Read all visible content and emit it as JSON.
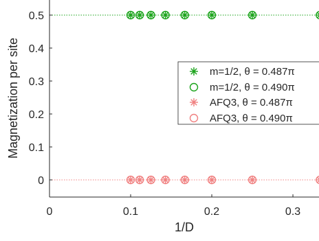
{
  "chart_data": {
    "type": "scatter",
    "xlabel": "1/D",
    "ylabel": "Magnetization per site",
    "xlim": [
      0,
      0.333
    ],
    "ylim": [
      -0.05,
      0.55
    ],
    "x_ticks": [
      "0",
      "0.1",
      "0.2",
      "0.3"
    ],
    "y_ticks": [
      "0",
      "0.1",
      "0.2",
      "0.3",
      "0.4",
      "0.5"
    ],
    "x_tick_values": [
      0,
      0.1,
      0.2,
      0.3
    ],
    "y_tick_values": [
      0,
      0.1,
      0.2,
      0.3,
      0.4,
      0.5
    ],
    "reference_lines": [
      {
        "y": 0.5,
        "color": "#1aa31a",
        "style": "dotted"
      },
      {
        "y": 0.0,
        "color": "#f08080",
        "style": "dotted"
      }
    ],
    "legend_position": "center-right",
    "series": [
      {
        "name": "m=1/2, θ = 0.487π",
        "marker": "asterisk",
        "color": "#1aa31a",
        "x": [
          0.1,
          0.1111,
          0.125,
          0.1429,
          0.1667,
          0.2,
          0.25,
          0.3333
        ],
        "y": [
          0.5,
          0.5,
          0.5,
          0.5,
          0.5,
          0.5,
          0.5,
          0.5
        ]
      },
      {
        "name": "m=1/2, θ = 0.490π",
        "marker": "circle",
        "color": "#1aa31a",
        "x": [
          0.1,
          0.1111,
          0.125,
          0.1429,
          0.1667,
          0.2,
          0.25,
          0.3333
        ],
        "y": [
          0.5,
          0.5,
          0.5,
          0.5,
          0.5,
          0.5,
          0.5,
          0.5
        ]
      },
      {
        "name": "AFQ3, θ = 0.487π",
        "marker": "asterisk",
        "color": "#f08080",
        "x": [
          0.1,
          0.1111,
          0.125,
          0.1429,
          0.1667,
          0.2,
          0.25,
          0.3333
        ],
        "y": [
          0,
          0,
          0,
          0,
          0,
          0,
          0,
          0
        ]
      },
      {
        "name": "AFQ3, θ = 0.490π",
        "marker": "circle",
        "color": "#f08080",
        "x": [
          0.1,
          0.1111,
          0.125,
          0.1429,
          0.1667,
          0.2,
          0.25,
          0.3333
        ],
        "y": [
          0,
          0,
          0,
          0,
          0,
          0,
          0,
          0
        ]
      }
    ]
  }
}
